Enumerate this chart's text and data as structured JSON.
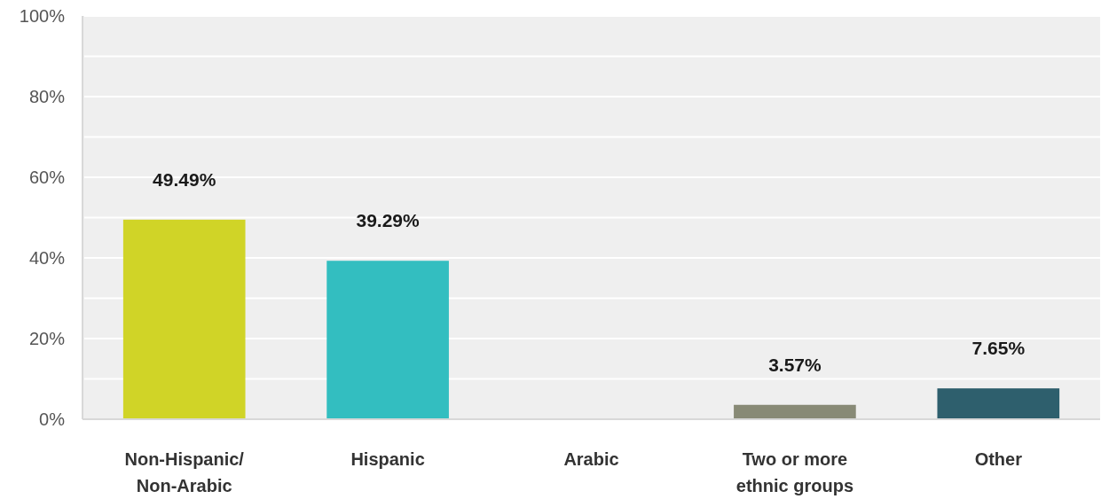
{
  "chart_data": {
    "type": "bar",
    "categories": [
      "Non-Hispanic/ Non-Arabic",
      "Hispanic",
      "Arabic",
      "Two or more ethnic groups",
      "Other"
    ],
    "values": [
      49.49,
      39.29,
      0,
      3.57,
      7.65
    ],
    "colors": [
      "#d0d427",
      "#33bec0",
      "#cccccc",
      "#888a76",
      "#2e5f6d"
    ],
    "value_labels": [
      "49.49%",
      "39.29%",
      null,
      "3.57%",
      "7.65%"
    ],
    "ylim": [
      0,
      100
    ],
    "yticks": [
      {
        "value": 0,
        "label": "0%"
      },
      {
        "value": 10,
        "label": null
      },
      {
        "value": 20,
        "label": "20%"
      },
      {
        "value": 30,
        "label": null
      },
      {
        "value": 40,
        "label": "40%"
      },
      {
        "value": 50,
        "label": null
      },
      {
        "value": 60,
        "label": "60%"
      },
      {
        "value": 70,
        "label": null
      },
      {
        "value": 80,
        "label": "80%"
      },
      {
        "value": 90,
        "label": null
      },
      {
        "value": 100,
        "label": "100%"
      }
    ],
    "grid": "y"
  }
}
